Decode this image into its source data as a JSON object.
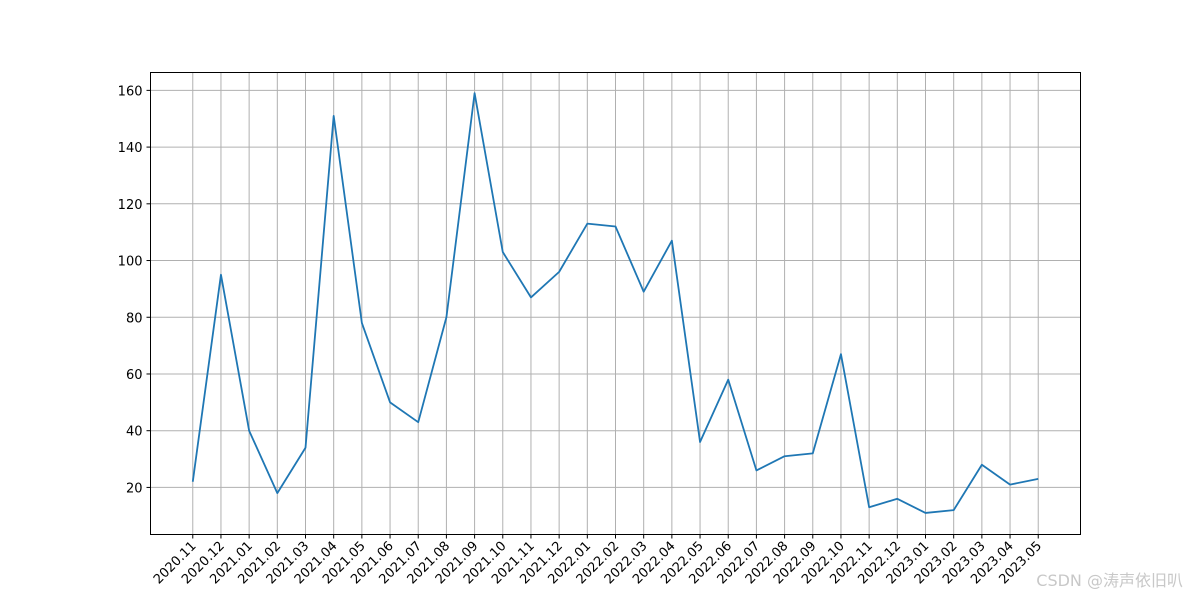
{
  "chart_data": {
    "type": "line",
    "categories": [
      "2020.11",
      "2020.12",
      "2021.01",
      "2021.02",
      "2021.03",
      "2021.04",
      "2021.05",
      "2021.06",
      "2021.07",
      "2021.08",
      "2021.09",
      "2021.10",
      "2021.11",
      "2021.12",
      "2022.01",
      "2022.02",
      "2022.03",
      "2022.04",
      "2022.05",
      "2022.06",
      "2022.07",
      "2022.08",
      "2022.09",
      "2022.10",
      "2022.11",
      "2022.12",
      "2023.01",
      "2023.02",
      "2023.03",
      "2023.04",
      "2023.05"
    ],
    "series": [
      {
        "color": "#1f77b4",
        "values": [
          22,
          95,
          40,
          18,
          34,
          151,
          78,
          50,
          43,
          80,
          159,
          103,
          87,
          96,
          113,
          112,
          89,
          107,
          36,
          58,
          26,
          31,
          32,
          67,
          13,
          16,
          11,
          12,
          28,
          21,
          23
        ]
      }
    ],
    "ylim": [
      3.4,
      166.3
    ],
    "yticks": [
      20,
      40,
      60,
      80,
      100,
      120,
      140,
      160
    ],
    "grid": true,
    "watermark": "CSDN @涛声依旧叭"
  }
}
